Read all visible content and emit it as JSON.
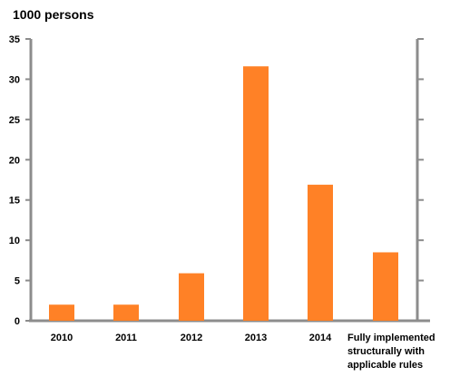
{
  "chart_data": {
    "type": "bar",
    "unit_label": "1000 persons",
    "categories": [
      "2010",
      "2011",
      "2012",
      "2013",
      "2014",
      "Fully implemented structurally with applicable rules"
    ],
    "category_lines": [
      [
        "2010"
      ],
      [
        "2011"
      ],
      [
        "2012"
      ],
      [
        "2013"
      ],
      [
        "2014"
      ],
      [
        "Fully implemented",
        "structurally with",
        "applicable rules"
      ]
    ],
    "values": [
      2,
      2,
      5.9,
      31.6,
      16.9,
      8.5
    ],
    "yticks": [
      0,
      5,
      10,
      15,
      20,
      25,
      30,
      35
    ],
    "ylim": [
      0,
      35
    ],
    "bar_color": "#ff8126",
    "axis_color": "#8c8c8c",
    "grid": false,
    "legend": false,
    "right_axis": "mirrored ticks, no labels"
  }
}
